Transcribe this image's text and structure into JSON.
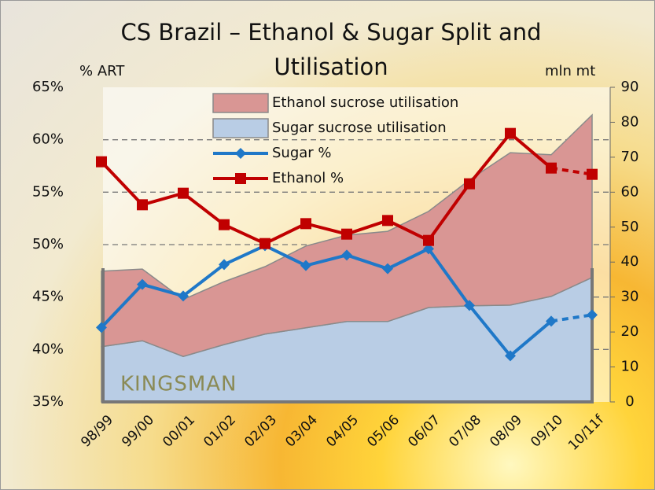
{
  "chart_data": {
    "type": "combo",
    "title": "CS Brazil – Ethanol & Sugar Split and Utilisation",
    "y_label": "% ART",
    "y2_label": "mln mt",
    "watermark": "KINGSMAN",
    "categories": [
      "98/99",
      "99/00",
      "00/01",
      "01/02",
      "02/03",
      "03/04",
      "04/05",
      "05/06",
      "06/07",
      "07/08",
      "08/09",
      "09/10",
      "10/11f"
    ],
    "forecast_start": 11,
    "ylim": [
      35,
      65
    ],
    "yticks": [
      {
        "value": 35,
        "label": "35%"
      },
      {
        "value": 40,
        "label": "40%"
      },
      {
        "value": 45,
        "label": "45%"
      },
      {
        "value": 50,
        "label": "50%"
      },
      {
        "value": 55,
        "label": "55%"
      },
      {
        "value": 60,
        "label": "60%"
      },
      {
        "value": 65,
        "label": "65%"
      }
    ],
    "y2lim": [
      0,
      90
    ],
    "y2ticks": [
      0,
      10,
      20,
      30,
      40,
      50,
      60,
      70,
      80,
      90
    ],
    "grid": true,
    "series": [
      {
        "name": "Ethanol sucrose utilisation",
        "type": "area",
        "axis": "y2",
        "stack": 1,
        "color": "#d99694",
        "values": [
          21.6,
          20.5,
          16.3,
          18,
          19.3,
          23.4,
          24.7,
          25.8,
          27.5,
          36,
          43.6,
          40.5,
          46.5
        ]
      },
      {
        "name": "Sugar sucrose utilisation",
        "type": "area",
        "axis": "y2",
        "stack": 0,
        "color": "#b9cde5",
        "values": [
          15.8,
          17.5,
          13,
          16.4,
          19.4,
          21.2,
          23,
          23,
          27,
          27.5,
          27.7,
          30.2,
          35.6
        ]
      },
      {
        "name": "Sugar %",
        "type": "line",
        "marker": "diamond",
        "color": "#1f78c8",
        "values": [
          42.1,
          46.2,
          45.1,
          48.1,
          49.9,
          48,
          49,
          47.7,
          49.6,
          44.2,
          39.4,
          42.7,
          43.3
        ]
      },
      {
        "name": "Ethanol %",
        "type": "line",
        "marker": "square",
        "color": "#c00000",
        "values": [
          57.9,
          53.8,
          54.9,
          51.9,
          50.1,
          52,
          51,
          52.3,
          50.4,
          55.8,
          60.6,
          57.3,
          56.7
        ]
      }
    ]
  }
}
